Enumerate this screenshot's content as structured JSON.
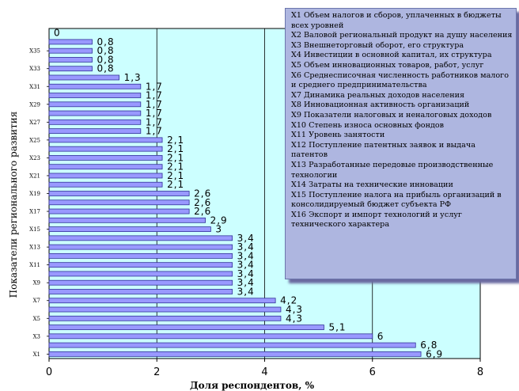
{
  "chart_data": {
    "type": "bar",
    "orientation": "horizontal",
    "ylabel": "Показатели регионального развития",
    "xlabel": "Доля респондентов, %",
    "xlim": [
      0,
      8
    ],
    "x_ticks": [
      "0",
      "2",
      "4",
      "6",
      "8"
    ],
    "grid": true,
    "y_tick_labels": [
      "X1",
      "X3",
      "X5",
      "X7",
      "X9",
      "X11",
      "X13",
      "X15",
      "X17",
      "X19",
      "X21",
      "X23",
      "X25",
      "X27",
      "X29",
      "X31",
      "X33",
      "X35"
    ],
    "values": [
      6.9,
      6.8,
      6,
      5.1,
      4.3,
      4.3,
      4.2,
      3.4,
      3.4,
      3.4,
      3.4,
      3.4,
      3.4,
      3.4,
      3,
      2.9,
      2.6,
      2.6,
      2.6,
      2.1,
      2.1,
      2.1,
      2.1,
      2.1,
      2.1,
      1.7,
      1.7,
      1.7,
      1.7,
      1.7,
      1.7,
      1.3,
      0.8,
      0.8,
      0.8,
      0.8,
      0
    ],
    "data_labels": [
      "6,9",
      "6,8",
      "6",
      "5,1",
      "4,3",
      "4,3",
      "4,2",
      "3,4",
      "3,4",
      "3,4",
      "3,4",
      "3,4",
      "3,4",
      "3,4",
      "3",
      "2,9",
      "2,6",
      "2,6",
      "2,6",
      "2,1",
      "2,1",
      "2,1",
      "2,1",
      "2,1",
      "2,1",
      "1,7",
      "1,7",
      "1,7",
      "1,7",
      "1,7",
      "1,7",
      "1,3",
      "0,8",
      "0,8",
      "0,8",
      "0,8",
      "0"
    ],
    "colors": {
      "plot_background": "#ccffff",
      "bar_fill": "#9999ff",
      "bar_stroke": "#333399",
      "legend_background": "#aeb6e0",
      "grid": "#000000"
    },
    "legend": {
      "placement": "top-right",
      "items": [
        "X1 Объем налогов и сборов, уплаченных в бюджеты всех уровней",
        "X2 Валовой региональный продукт на душу населения",
        "X3 Внешнеторговый оборот, его структура",
        "X4 Инвестиции в основной капитал, их структура",
        "X5 Объем инновационных товаров, работ, услуг",
        "X6 Среднесписочная численность работников малого и среднего предпринимательства",
        "X7 Динамика реальных доходов населения",
        "X8 Инновационная активность организаций",
        "X9 Показатели налоговых и неналоговых доходов",
        "X10 Степень износа основных фондов",
        "X11 Уровень занятости",
        "X12 Поступление патентных заявок и выдача патентов",
        "X13 Разработанные передовые производственные технологии",
        "X14 Затраты на технические инновации",
        "X15 Поступление налога на прибыль организаций в консолидируемый бюджет субъекта РФ",
        "X16 Экспорт и импорт технологий и услуг технического характера"
      ]
    }
  }
}
